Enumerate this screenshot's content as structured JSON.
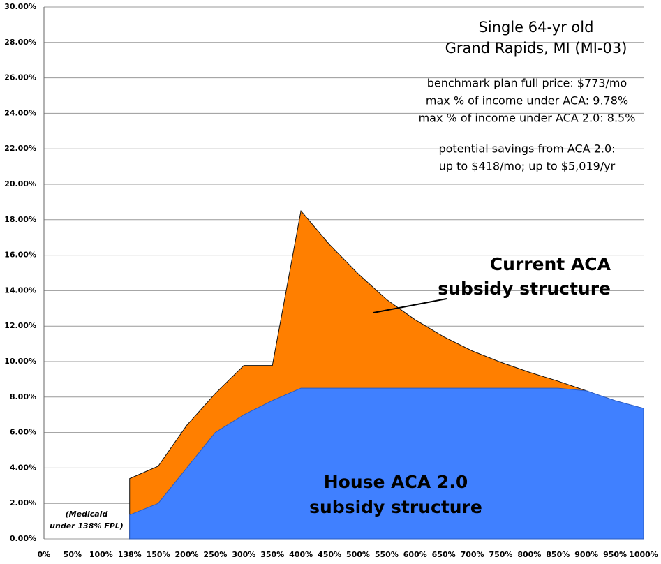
{
  "chart_data": {
    "type": "area",
    "categories": [
      "0%",
      "50%",
      "100%",
      "138%",
      "150%",
      "200%",
      "250%",
      "300%",
      "350%",
      "400%",
      "450%",
      "500%",
      "550%",
      "600%",
      "650%",
      "700%",
      "750%",
      "800%",
      "850%",
      "900%",
      "950%",
      "1000%"
    ],
    "series": [
      {
        "name": "Current ACA subsidy structure",
        "color": "#ff7f00",
        "values": [
          null,
          null,
          null,
          3.4,
          4.1,
          6.4,
          8.2,
          9.78,
          9.78,
          18.5,
          16.6,
          14.96,
          13.5,
          12.36,
          11.4,
          10.6,
          9.96,
          9.4,
          8.9,
          8.35,
          7.76,
          7.36
        ]
      },
      {
        "name": "House ACA 2.0 subsidy structure",
        "color": "#4080ff",
        "values": [
          null,
          null,
          null,
          1.35,
          2.0,
          4.0,
          6.0,
          7.0,
          7.8,
          8.5,
          8.5,
          8.5,
          8.5,
          8.5,
          8.5,
          8.5,
          8.5,
          8.5,
          8.5,
          8.35,
          7.8,
          7.36
        ]
      }
    ],
    "ylim": [
      0,
      30
    ],
    "yticks": [
      {
        "value": 0,
        "label": "0.00%"
      },
      {
        "value": 2,
        "label": "2.00%"
      },
      {
        "value": 4,
        "label": "4.00%"
      },
      {
        "value": 6,
        "label": "6.00%"
      },
      {
        "value": 8,
        "label": "8.00%"
      },
      {
        "value": 10,
        "label": "10.00%"
      },
      {
        "value": 12,
        "label": "12.00%"
      },
      {
        "value": 14,
        "label": "14.00%"
      },
      {
        "value": 16,
        "label": "16.00%"
      },
      {
        "value": 18,
        "label": "18.00%"
      },
      {
        "value": 20,
        "label": "20.00%"
      },
      {
        "value": 22,
        "label": "22.00%"
      },
      {
        "value": 24,
        "label": "24.00%"
      },
      {
        "value": 26,
        "label": "26.00%"
      },
      {
        "value": 28,
        "label": "28.00%"
      },
      {
        "value": 30,
        "label": "30.00%"
      }
    ],
    "grid": true,
    "title": [
      "Single 64-yr old",
      "Grand Rapids, MI (MI-03)"
    ],
    "annotations": {
      "plan": [
        "benchmark plan full price: $773/mo",
        "max % of income under ACA: 9.78%",
        "max % of income under ACA 2.0: 8.5%"
      ],
      "savings": [
        "potential savings from ACA 2.0:",
        "up to $418/mo; up to $5,019/yr"
      ],
      "current_label": [
        "Current ACA",
        "subsidy structure"
      ],
      "house_label": [
        "House ACA 2.0",
        "subsidy structure"
      ],
      "medicaid_note": [
        "(Medicaid",
        "under 138% FPL)"
      ]
    }
  }
}
